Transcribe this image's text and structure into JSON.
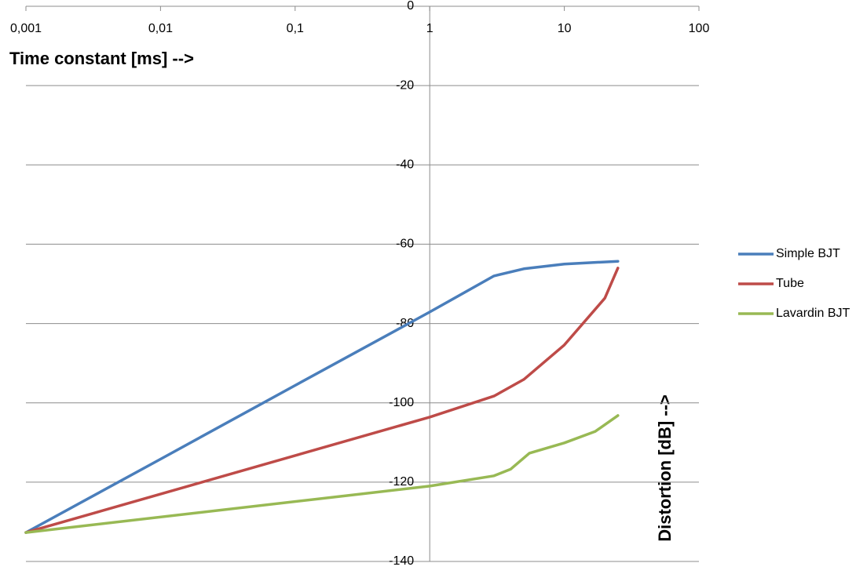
{
  "chart_data": {
    "type": "line",
    "x_title": "Time constant [ms] -->",
    "y_title": "Distortion [dB] -->",
    "xscale": "log",
    "xlim": [
      0.001,
      100
    ],
    "xticks": [
      {
        "value": 0.001,
        "label": "0,001"
      },
      {
        "value": 0.01,
        "label": "0,01"
      },
      {
        "value": 0.1,
        "label": "0,1"
      },
      1,
      10,
      100
    ],
    "ylim": [
      -140,
      0
    ],
    "yticks": [
      0,
      -20,
      -40,
      -60,
      -80,
      -100,
      -120,
      -140
    ],
    "y_axis_at": 1,
    "grid": true,
    "legend": "right",
    "series": [
      {
        "name": "Simple BJT",
        "color": "#4a7ebb",
        "x": [
          0.001,
          0.01,
          0.1,
          1,
          3,
          5,
          10,
          25
        ],
        "values": [
          -132.7,
          -114.2,
          -95.6,
          -77.1,
          -68,
          -66.2,
          -65,
          -64.3
        ]
      },
      {
        "name": "Tube",
        "color": "#be4b48",
        "x": [
          0.001,
          1,
          3,
          5,
          10,
          20,
          25
        ],
        "values": [
          -132.7,
          -103.6,
          -98.3,
          -94.1,
          -85.4,
          -73.6,
          -66
        ]
      },
      {
        "name": "Lavardin BJT",
        "color": "#98b954",
        "x": [
          0.001,
          1,
          3,
          4,
          5.5,
          10,
          17,
          25
        ],
        "values": [
          -132.7,
          -121,
          -118.4,
          -116.7,
          -112.7,
          -110.1,
          -107.2,
          -103.2
        ]
      }
    ]
  }
}
